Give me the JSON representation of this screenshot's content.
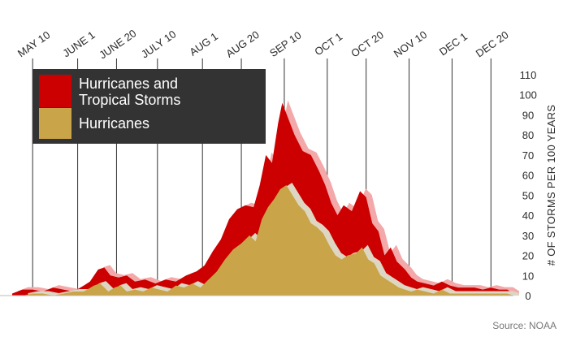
{
  "chart_data": {
    "type": "area",
    "ylabel": "# OF STORMS PER 100 YEARS",
    "ylim": [
      0,
      110
    ],
    "yticks": [
      0,
      10,
      20,
      30,
      40,
      50,
      60,
      70,
      80,
      90,
      100,
      110
    ],
    "grid": "vertical",
    "legend_position": "top-left",
    "categories": [
      "MAY 10",
      "JUNE 1",
      "JUNE 20",
      "JULY 10",
      "AUG 1",
      "AUG 20",
      "SEP 10",
      "OCT 1",
      "OCT 20",
      "NOV 10",
      "DEC 1",
      "DEC 20"
    ],
    "x_days": [
      130,
      152,
      171,
      191,
      213,
      232,
      253,
      274,
      293,
      314,
      335,
      354
    ],
    "series": [
      {
        "name": "Hurricanes and Tropical Storms",
        "color": "#cc0000",
        "shadow_color": "#f3a9a9",
        "points": [
          [
            120,
            1
          ],
          [
            125,
            3
          ],
          [
            130,
            3
          ],
          [
            135,
            2
          ],
          [
            140,
            4
          ],
          [
            145,
            3
          ],
          [
            150,
            2
          ],
          [
            155,
            5
          ],
          [
            158,
            7
          ],
          [
            162,
            13
          ],
          [
            165,
            14
          ],
          [
            168,
            10
          ],
          [
            172,
            9
          ],
          [
            176,
            10
          ],
          [
            180,
            7
          ],
          [
            185,
            8
          ],
          [
            190,
            6
          ],
          [
            195,
            8
          ],
          [
            200,
            7
          ],
          [
            205,
            10
          ],
          [
            210,
            12
          ],
          [
            214,
            15
          ],
          [
            218,
            22
          ],
          [
            222,
            28
          ],
          [
            226,
            38
          ],
          [
            230,
            43
          ],
          [
            234,
            45
          ],
          [
            238,
            44
          ],
          [
            241,
            55
          ],
          [
            244,
            70
          ],
          [
            247,
            66
          ],
          [
            250,
            86
          ],
          [
            252,
            96
          ],
          [
            255,
            88
          ],
          [
            258,
            80
          ],
          [
            262,
            72
          ],
          [
            266,
            70
          ],
          [
            270,
            62
          ],
          [
            273,
            55
          ],
          [
            276,
            46
          ],
          [
            279,
            40
          ],
          [
            282,
            45
          ],
          [
            286,
            42
          ],
          [
            290,
            52
          ],
          [
            293,
            49
          ],
          [
            296,
            36
          ],
          [
            299,
            32
          ],
          [
            302,
            20
          ],
          [
            305,
            24
          ],
          [
            308,
            17
          ],
          [
            312,
            13
          ],
          [
            315,
            9
          ],
          [
            318,
            7
          ],
          [
            322,
            6
          ],
          [
            326,
            5
          ],
          [
            330,
            7
          ],
          [
            334,
            5
          ],
          [
            338,
            4
          ],
          [
            342,
            4
          ],
          [
            346,
            4
          ],
          [
            350,
            3
          ],
          [
            354,
            4
          ],
          [
            358,
            3
          ],
          [
            362,
            3
          ],
          [
            365,
            1
          ]
        ]
      },
      {
        "name": "Hurricanes",
        "color": "#c9a448",
        "shadow_color": "#ddd6c2",
        "points": [
          [
            125,
            0
          ],
          [
            130,
            1
          ],
          [
            135,
            1
          ],
          [
            140,
            0
          ],
          [
            145,
            1
          ],
          [
            150,
            2
          ],
          [
            155,
            2
          ],
          [
            160,
            5
          ],
          [
            163,
            6
          ],
          [
            167,
            2
          ],
          [
            170,
            4
          ],
          [
            173,
            5
          ],
          [
            176,
            2
          ],
          [
            180,
            3
          ],
          [
            184,
            2
          ],
          [
            188,
            4
          ],
          [
            192,
            3
          ],
          [
            196,
            2
          ],
          [
            200,
            5
          ],
          [
            204,
            4
          ],
          [
            208,
            6
          ],
          [
            212,
            4
          ],
          [
            216,
            8
          ],
          [
            220,
            12
          ],
          [
            224,
            18
          ],
          [
            228,
            23
          ],
          [
            232,
            26
          ],
          [
            236,
            30
          ],
          [
            239,
            27
          ],
          [
            242,
            38
          ],
          [
            245,
            44
          ],
          [
            248,
            48
          ],
          [
            251,
            53
          ],
          [
            254,
            55
          ],
          [
            257,
            50
          ],
          [
            260,
            45
          ],
          [
            263,
            42
          ],
          [
            266,
            36
          ],
          [
            269,
            34
          ],
          [
            272,
            31
          ],
          [
            275,
            25
          ],
          [
            278,
            20
          ],
          [
            281,
            18
          ],
          [
            284,
            20
          ],
          [
            288,
            21
          ],
          [
            291,
            24
          ],
          [
            294,
            18
          ],
          [
            297,
            16
          ],
          [
            300,
            10
          ],
          [
            303,
            8
          ],
          [
            306,
            6
          ],
          [
            309,
            4
          ],
          [
            312,
            3
          ],
          [
            315,
            2
          ],
          [
            318,
            3
          ],
          [
            322,
            2
          ],
          [
            326,
            1
          ],
          [
            330,
            3
          ],
          [
            334,
            1
          ],
          [
            338,
            1
          ],
          [
            342,
            1
          ],
          [
            346,
            1
          ],
          [
            350,
            1
          ],
          [
            354,
            1
          ],
          [
            358,
            1
          ],
          [
            362,
            1
          ],
          [
            365,
            0
          ]
        ]
      }
    ],
    "legend": [
      {
        "label_lines": [
          "Hurricanes and",
          "Tropical Storms"
        ],
        "color": "#cc0000"
      },
      {
        "label_lines": [
          "Hurricanes"
        ],
        "color": "#c9a448"
      }
    ],
    "legend_bg": "#333333",
    "source": "Source: NOAA"
  }
}
